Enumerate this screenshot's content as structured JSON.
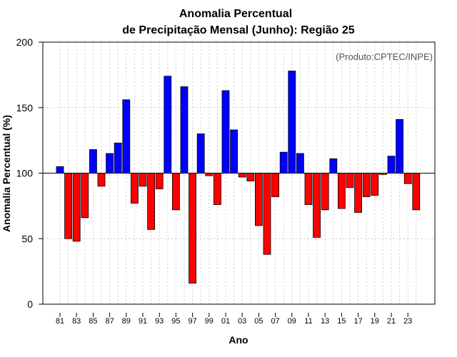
{
  "chart_data": {
    "type": "bar",
    "title": "Anomalia Percentual",
    "subtitle": "de Precipitação Mensal (Junho): Região 25",
    "xlabel": "Ano",
    "ylabel": "Anomalia Percentual (%)",
    "annotation": "(Produto:CPTEC/INPE)",
    "baseline": 100,
    "ylim": [
      0,
      200
    ],
    "yticks": [
      0,
      50,
      100,
      150,
      200
    ],
    "grid": true,
    "categories": [
      "1981",
      "1982",
      "1983",
      "1984",
      "1985",
      "1986",
      "1987",
      "1988",
      "1989",
      "1990",
      "1991",
      "1992",
      "1993",
      "1994",
      "1995",
      "1996",
      "1997",
      "1998",
      "1999",
      "2000",
      "2001",
      "2002",
      "2003",
      "2004",
      "2005",
      "2006",
      "2007",
      "2008",
      "2009",
      "2010",
      "2011",
      "2012",
      "2013",
      "2014",
      "2015",
      "2016",
      "2017",
      "2018",
      "2019",
      "2020",
      "2021",
      "2022",
      "2023",
      "2024"
    ],
    "values": [
      105,
      50,
      48,
      66,
      118,
      90,
      115,
      123,
      156,
      77,
      90,
      57,
      88,
      174,
      72,
      166,
      16,
      130,
      98,
      76,
      163,
      133,
      97,
      94,
      60,
      38,
      82,
      116,
      178,
      115,
      76,
      51,
      72,
      111,
      73,
      89,
      70,
      82,
      83,
      99,
      113,
      141,
      92,
      72
    ],
    "xtick_labels": [
      "81",
      "83",
      "85",
      "87",
      "89",
      "91",
      "93",
      "95",
      "97",
      "99",
      "01",
      "03",
      "05",
      "07",
      "09",
      "11",
      "13",
      "15",
      "17",
      "19",
      "21",
      "23"
    ],
    "colors": {
      "above": "#0000FF",
      "below": "#FF0000",
      "grid": "#cccccc",
      "axis": "#000000"
    }
  }
}
